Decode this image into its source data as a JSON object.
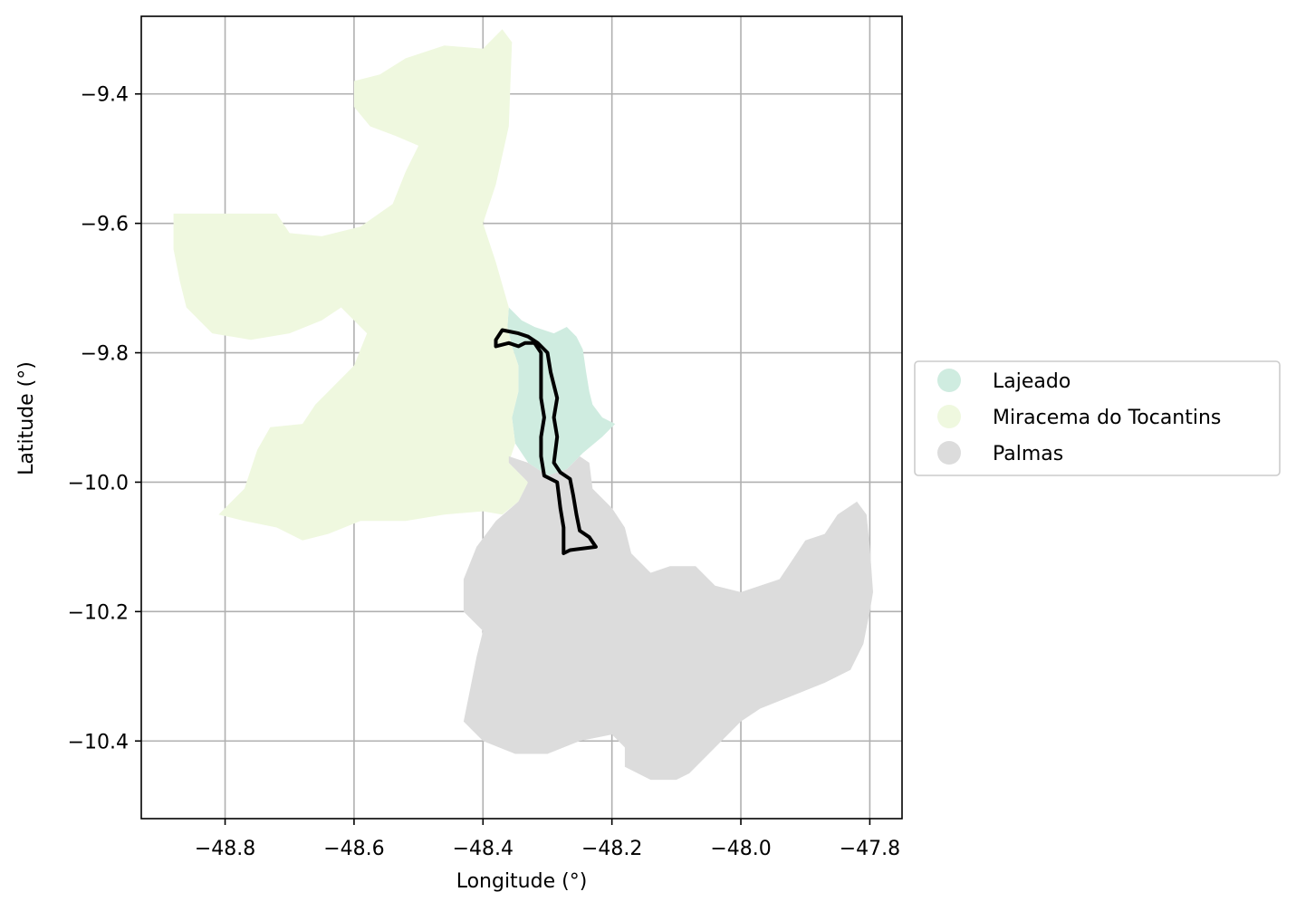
{
  "chart_data": {
    "type": "map",
    "xlabel": "Longitude (°)",
    "ylabel": "Latitude (°)",
    "xlim": [
      -48.93,
      -47.75
    ],
    "ylim": [
      -10.52,
      -9.28
    ],
    "xticks": [
      -48.8,
      -48.6,
      -48.4,
      -48.2,
      -48.0,
      -47.8
    ],
    "xtick_labels": [
      "−48.8",
      "−48.6",
      "−48.4",
      "−48.2",
      "−48.0",
      "−47.8"
    ],
    "yticks": [
      -9.4,
      -9.6,
      -9.8,
      -10.0,
      -10.2,
      -10.4
    ],
    "ytick_labels": [
      "−9.4",
      "−9.6",
      "−9.8",
      "−10.0",
      "−10.2",
      "−10.4"
    ],
    "grid": true,
    "legend_position": "center-right outside",
    "regions": [
      {
        "name": "Lajeado",
        "color": "#cfece0",
        "outline": [
          [
            -48.36,
            -9.73
          ],
          [
            -48.34,
            -9.75
          ],
          [
            -48.32,
            -9.76
          ],
          [
            -48.29,
            -9.77
          ],
          [
            -48.27,
            -9.76
          ],
          [
            -48.255,
            -9.775
          ],
          [
            -48.245,
            -9.795
          ],
          [
            -48.24,
            -9.83
          ],
          [
            -48.235,
            -9.86
          ],
          [
            -48.23,
            -9.88
          ],
          [
            -48.215,
            -9.9
          ],
          [
            -48.195,
            -9.91
          ],
          [
            -48.215,
            -9.93
          ],
          [
            -48.245,
            -9.955
          ],
          [
            -48.27,
            -9.98
          ],
          [
            -48.3,
            -9.99
          ],
          [
            -48.33,
            -9.97
          ],
          [
            -48.35,
            -9.94
          ],
          [
            -48.355,
            -9.9
          ],
          [
            -48.345,
            -9.86
          ],
          [
            -48.345,
            -9.82
          ],
          [
            -48.355,
            -9.79
          ],
          [
            -48.362,
            -9.76
          ]
        ]
      },
      {
        "name": "Miracema do Tocantins",
        "color": "#eff8df",
        "outline": [
          [
            -48.88,
            -9.585
          ],
          [
            -48.72,
            -9.585
          ],
          [
            -48.7,
            -9.615
          ],
          [
            -48.65,
            -9.62
          ],
          [
            -48.59,
            -9.605
          ],
          [
            -48.54,
            -9.57
          ],
          [
            -48.52,
            -9.52
          ],
          [
            -48.5,
            -9.48
          ],
          [
            -48.535,
            -9.465
          ],
          [
            -48.575,
            -9.45
          ],
          [
            -48.6,
            -9.42
          ],
          [
            -48.6,
            -9.38
          ],
          [
            -48.56,
            -9.37
          ],
          [
            -48.52,
            -9.345
          ],
          [
            -48.46,
            -9.325
          ],
          [
            -48.4,
            -9.33
          ],
          [
            -48.37,
            -9.3
          ],
          [
            -48.355,
            -9.32
          ],
          [
            -48.36,
            -9.45
          ],
          [
            -48.38,
            -9.54
          ],
          [
            -48.4,
            -9.6
          ],
          [
            -48.38,
            -9.66
          ],
          [
            -48.36,
            -9.73
          ],
          [
            -48.362,
            -9.76
          ],
          [
            -48.355,
            -9.79
          ],
          [
            -48.345,
            -9.82
          ],
          [
            -48.345,
            -9.86
          ],
          [
            -48.355,
            -9.9
          ],
          [
            -48.35,
            -9.94
          ],
          [
            -48.36,
            -9.97
          ],
          [
            -48.33,
            -10.0
          ],
          [
            -48.345,
            -10.03
          ],
          [
            -48.37,
            -10.05
          ],
          [
            -48.4,
            -10.045
          ],
          [
            -48.46,
            -10.05
          ],
          [
            -48.52,
            -10.06
          ],
          [
            -48.59,
            -10.06
          ],
          [
            -48.64,
            -10.08
          ],
          [
            -48.68,
            -10.09
          ],
          [
            -48.72,
            -10.07
          ],
          [
            -48.77,
            -10.06
          ],
          [
            -48.81,
            -10.05
          ],
          [
            -48.77,
            -10.01
          ],
          [
            -48.75,
            -9.95
          ],
          [
            -48.73,
            -9.915
          ],
          [
            -48.68,
            -9.91
          ],
          [
            -48.66,
            -9.88
          ],
          [
            -48.63,
            -9.85
          ],
          [
            -48.6,
            -9.82
          ],
          [
            -48.58,
            -9.77
          ],
          [
            -48.62,
            -9.73
          ],
          [
            -48.65,
            -9.75
          ],
          [
            -48.7,
            -9.77
          ],
          [
            -48.76,
            -9.78
          ],
          [
            -48.82,
            -9.77
          ],
          [
            -48.86,
            -9.73
          ],
          [
            -48.87,
            -9.69
          ],
          [
            -48.88,
            -9.64
          ]
        ]
      },
      {
        "name": "Palmas",
        "color": "#dcdcdc",
        "outline": [
          [
            -48.36,
            -9.96
          ],
          [
            -48.33,
            -9.97
          ],
          [
            -48.3,
            -9.99
          ],
          [
            -48.27,
            -9.98
          ],
          [
            -48.25,
            -9.96
          ],
          [
            -48.235,
            -9.97
          ],
          [
            -48.23,
            -10.01
          ],
          [
            -48.2,
            -10.04
          ],
          [
            -48.18,
            -10.07
          ],
          [
            -48.17,
            -10.11
          ],
          [
            -48.14,
            -10.14
          ],
          [
            -48.11,
            -10.13
          ],
          [
            -48.07,
            -10.13
          ],
          [
            -48.04,
            -10.16
          ],
          [
            -48.0,
            -10.17
          ],
          [
            -47.97,
            -10.16
          ],
          [
            -47.94,
            -10.15
          ],
          [
            -47.92,
            -10.12
          ],
          [
            -47.9,
            -10.09
          ],
          [
            -47.87,
            -10.08
          ],
          [
            -47.85,
            -10.05
          ],
          [
            -47.82,
            -10.03
          ],
          [
            -47.805,
            -10.05
          ],
          [
            -47.8,
            -10.1
          ],
          [
            -47.795,
            -10.17
          ],
          [
            -47.8,
            -10.2
          ],
          [
            -47.81,
            -10.25
          ],
          [
            -47.83,
            -10.29
          ],
          [
            -47.87,
            -10.31
          ],
          [
            -47.92,
            -10.33
          ],
          [
            -47.97,
            -10.35
          ],
          [
            -48.0,
            -10.37
          ],
          [
            -48.03,
            -10.4
          ],
          [
            -48.06,
            -10.43
          ],
          [
            -48.08,
            -10.45
          ],
          [
            -48.1,
            -10.46
          ],
          [
            -48.14,
            -10.46
          ],
          [
            -48.18,
            -10.44
          ],
          [
            -48.18,
            -10.41
          ],
          [
            -48.2,
            -10.39
          ],
          [
            -48.25,
            -10.4
          ],
          [
            -48.3,
            -10.42
          ],
          [
            -48.35,
            -10.42
          ],
          [
            -48.4,
            -10.4
          ],
          [
            -48.43,
            -10.37
          ],
          [
            -48.42,
            -10.32
          ],
          [
            -48.41,
            -10.27
          ],
          [
            -48.4,
            -10.23
          ],
          [
            -48.43,
            -10.2
          ],
          [
            -48.43,
            -10.15
          ],
          [
            -48.41,
            -10.1
          ],
          [
            -48.38,
            -10.06
          ],
          [
            -48.345,
            -10.03
          ],
          [
            -48.33,
            -10.0
          ],
          [
            -48.36,
            -9.97
          ]
        ]
      }
    ],
    "outline_shape": {
      "color": "#000000",
      "points": [
        [
          -48.38,
          -9.78
        ],
        [
          -48.37,
          -9.765
        ],
        [
          -48.345,
          -9.77
        ],
        [
          -48.33,
          -9.775
        ],
        [
          -48.315,
          -9.785
        ],
        [
          -48.3,
          -9.8
        ],
        [
          -48.295,
          -9.83
        ],
        [
          -48.285,
          -9.87
        ],
        [
          -48.29,
          -9.9
        ],
        [
          -48.285,
          -9.93
        ],
        [
          -48.29,
          -9.97
        ],
        [
          -48.28,
          -9.985
        ],
        [
          -48.265,
          -9.995
        ],
        [
          -48.26,
          -10.02
        ],
        [
          -48.255,
          -10.05
        ],
        [
          -48.25,
          -10.075
        ],
        [
          -48.235,
          -10.085
        ],
        [
          -48.225,
          -10.1
        ],
        [
          -48.265,
          -10.105
        ],
        [
          -48.275,
          -10.11
        ],
        [
          -48.275,
          -10.07
        ],
        [
          -48.28,
          -10.04
        ],
        [
          -48.285,
          -10.0
        ],
        [
          -48.305,
          -9.99
        ],
        [
          -48.31,
          -9.96
        ],
        [
          -48.31,
          -9.93
        ],
        [
          -48.305,
          -9.9
        ],
        [
          -48.31,
          -9.87
        ],
        [
          -48.31,
          -9.83
        ],
        [
          -48.31,
          -9.8
        ],
        [
          -48.32,
          -9.785
        ],
        [
          -48.335,
          -9.785
        ],
        [
          -48.345,
          -9.79
        ],
        [
          -48.36,
          -9.785
        ],
        [
          -48.38,
          -9.79
        ]
      ]
    }
  },
  "legend": {
    "items": [
      {
        "label": "Lajeado",
        "color": "#cfece0"
      },
      {
        "label": "Miracema do Tocantins",
        "color": "#eff8df"
      },
      {
        "label": "Palmas",
        "color": "#dcdcdc"
      }
    ]
  }
}
